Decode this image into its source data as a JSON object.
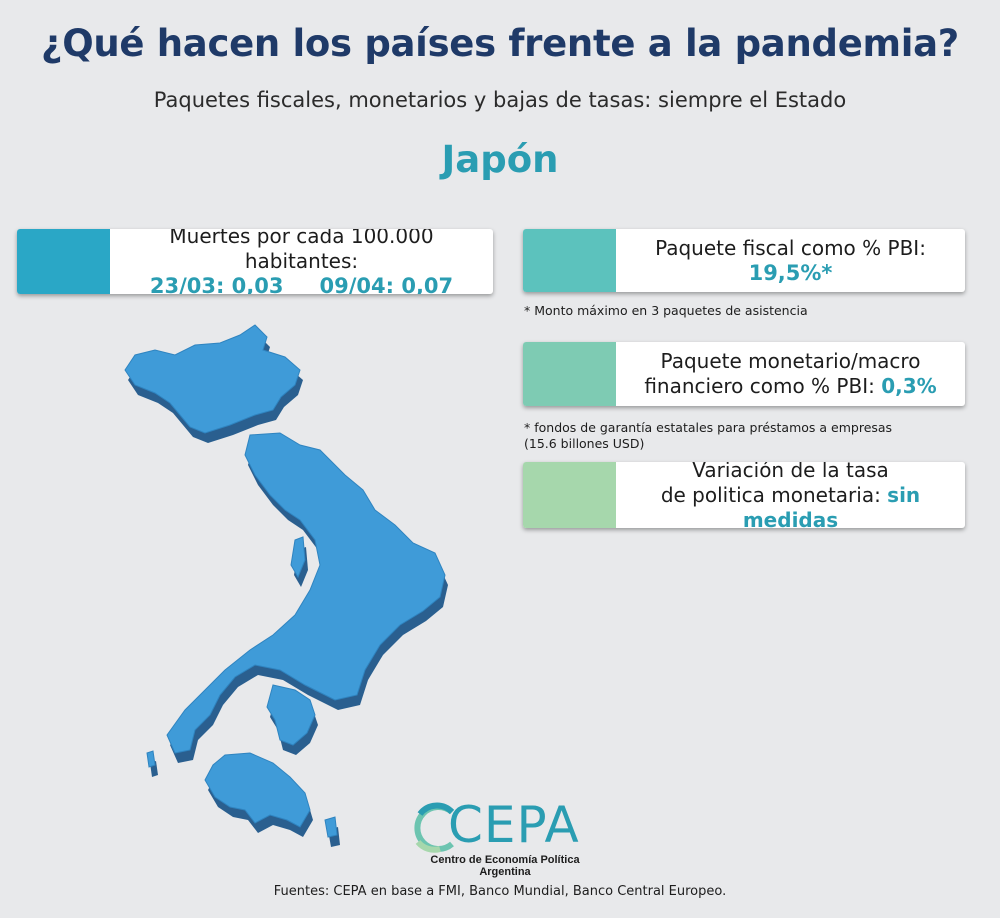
{
  "header": {
    "title": "¿Qué hacen los países frente a la pandemia?",
    "subtitle": "Paquetes fiscales, monetarios y bajas de tasas: siempre el Estado",
    "country": "Japón"
  },
  "deaths_card": {
    "label": "Muertes por cada 100.000 habitantes:",
    "value_1": "23/03: 0,03",
    "value_2": "09/04: 0,07",
    "color": "#2aa7c6"
  },
  "fiscal_card": {
    "label": "Paquete fiscal como % PBI:",
    "value": "19,5%*",
    "note": "* Monto máximo en 3 paquetes de asistencia",
    "color": "#5cc2bd"
  },
  "monetary_card": {
    "label_line_1": "Paquete monetario/macro",
    "label_line_2": "financiero como % PBI:",
    "value": "0,3%",
    "note_line_1": "* fondos de garantía estatales para préstamos a empresas",
    "note_line_2": "(15.6 billones USD)",
    "color": "#7ecbb3"
  },
  "rate_card": {
    "label_line_1": "Variación de la tasa",
    "label_line_2": "de politica monetaria:",
    "value": "sin medidas",
    "color": "#a6d7ac"
  },
  "map": {
    "icon": "japan-map-icon",
    "fill_color": "#3f9bd8",
    "side_color": "#2a5f8f"
  },
  "logo": {
    "letters": "CEPA",
    "subtitle": "Centro de Economía Política Argentina"
  },
  "footer": {
    "sources": "Fuentes: CEPA en base a FMI, Banco Mundial, Banco Central Europeo."
  }
}
